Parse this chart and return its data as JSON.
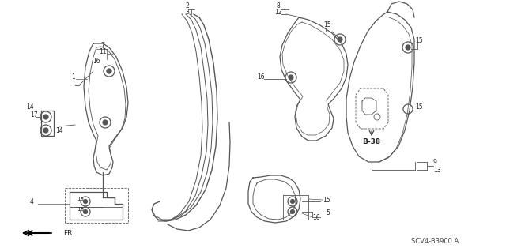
{
  "background_color": "#ffffff",
  "diagram_code": "SCV4-B3900 A",
  "line_color": "#555555",
  "fig_width": 6.4,
  "fig_height": 3.19,
  "dpi": 100
}
